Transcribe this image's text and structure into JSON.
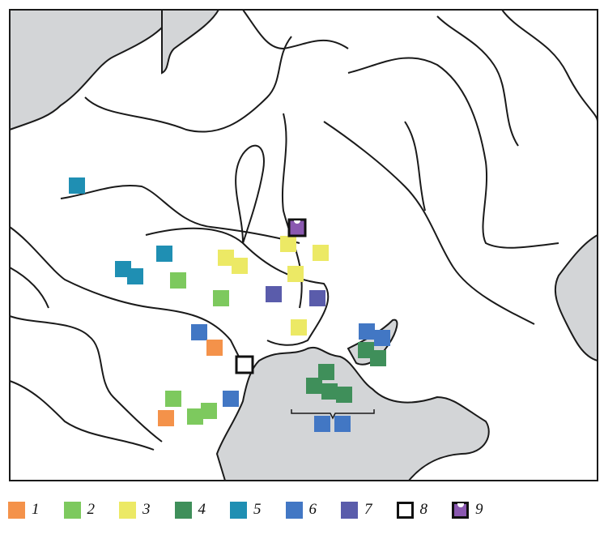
{
  "legend": [
    {
      "label": "1",
      "color": "#f4924a",
      "type": "fill"
    },
    {
      "label": "2",
      "color": "#7dc95e",
      "type": "fill"
    },
    {
      "label": "3",
      "color": "#ece965",
      "type": "fill"
    },
    {
      "label": "4",
      "color": "#3f8f5a",
      "type": "fill"
    },
    {
      "label": "5",
      "color": "#1f8fb3",
      "type": "fill"
    },
    {
      "label": "6",
      "color": "#4277c4",
      "type": "fill"
    },
    {
      "label": "7",
      "color": "#5a5cab",
      "type": "fill"
    },
    {
      "label": "8",
      "color": "#ffffff",
      "type": "outline"
    },
    {
      "label": "9",
      "color": "#8a58b0",
      "type": "notched"
    }
  ],
  "colors": {
    "sea": "#d3d5d7",
    "land": "#ffffff",
    "lines": "#1a1a1a"
  }
}
